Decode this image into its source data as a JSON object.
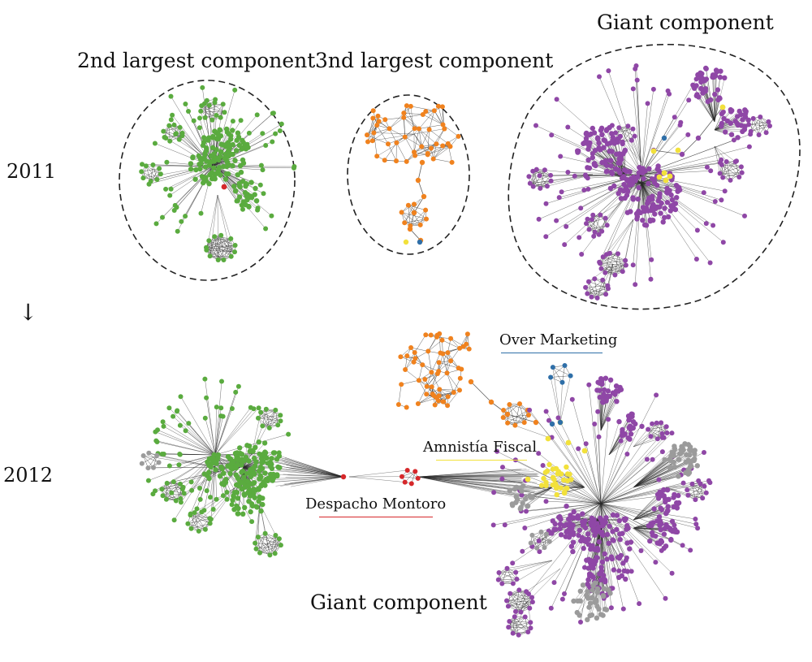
{
  "labels": {
    "comp_2nd": "2nd largest component",
    "comp_3rd": "3nd largest component",
    "giant_top": "Giant component",
    "giant_bottom": "Giant component",
    "year_2011": "2011",
    "year_2012": "2012",
    "arrow": "↓",
    "over_marketing": "Over Marketing",
    "amnistia_fiscal": "Amnistía Fiscal",
    "despacho_montoro": "Despacho Montoro"
  },
  "colors": {
    "green": "#5aab3f",
    "orange": "#f0821e",
    "purple": "#8f47a6",
    "grey": "#9b9b9b",
    "yellow": "#f2e13b",
    "blue": "#2f6fa8",
    "red": "#d6282b",
    "edge": "#2a2a2a",
    "over_marketing_line": "#2f6fa8",
    "amnistia_line": "#f2e13b",
    "despacho_line": "#d6282b"
  }
}
